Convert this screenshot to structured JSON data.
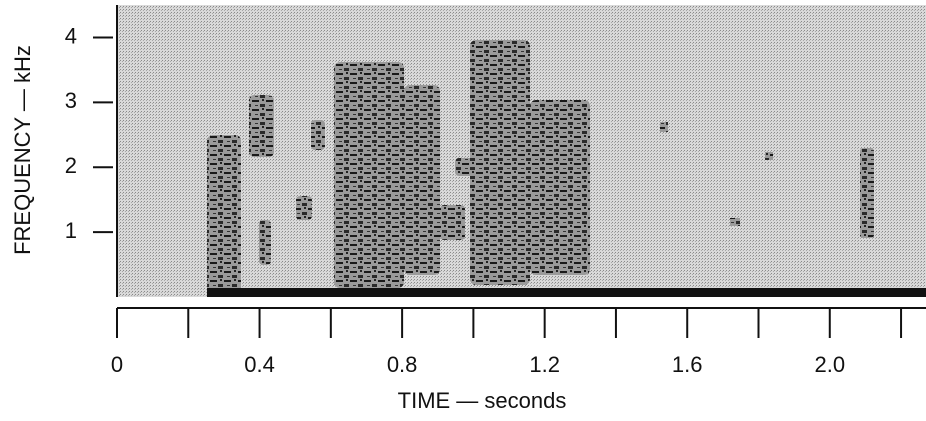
{
  "chart_data": {
    "type": "spectrogram",
    "xlabel": "TIME — seconds",
    "ylabel": "FREQUENCY — kHz",
    "xlim": [
      0,
      2.27
    ],
    "ylim": [
      0,
      4.5
    ],
    "xticks": [
      0,
      0.4,
      0.8,
      1.2,
      1.6,
      {
        "value": 2,
        "label": "2.0"
      }
    ],
    "xminor": [
      0.2,
      0.6,
      1.0,
      1.4,
      1.8,
      2.2
    ],
    "yticks": [
      1,
      2,
      3,
      4
    ]
  }
}
